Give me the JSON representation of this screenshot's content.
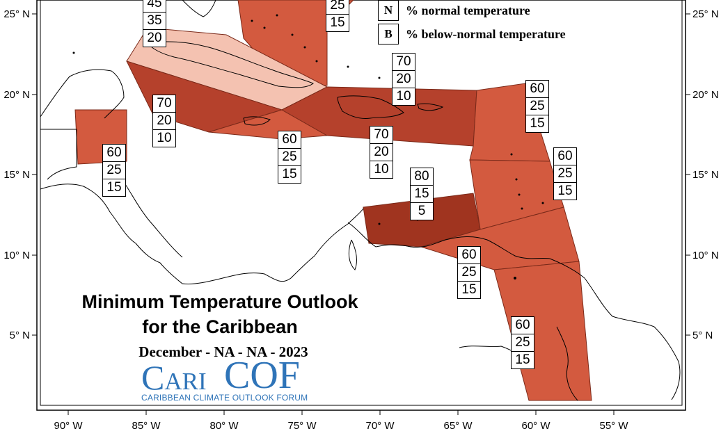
{
  "title": {
    "line1": "Minimum Temperature Outlook",
    "line2": "for the Caribbean"
  },
  "period": "December - NA - NA - 2023",
  "logo": {
    "name_prefix": "Cari",
    "name_suffix": "COF",
    "tagline": "CARIBBEAN CLIMATE OUTLOOK FORUM"
  },
  "legend": [
    {
      "key": "N",
      "text": "% normal temperature"
    },
    {
      "key": "B",
      "text": "% below-normal temperature"
    }
  ],
  "axes": {
    "longitude_ticks": [
      "90° W",
      "85° W",
      "80° W",
      "75° W",
      "70° W",
      "65° W",
      "60° W",
      "55° W"
    ],
    "latitude_ticks": [
      "25° N",
      "20° N",
      "15° N",
      "10° N",
      "5° N"
    ]
  },
  "colors": {
    "above_light": "#f4c2b1",
    "above_medium": "#d35a3f",
    "above_strong": "#b5412c",
    "above_darkest": "#a0341f"
  },
  "probability_boxes": [
    {
      "id": "bahamas-west",
      "values": [
        "45",
        "35",
        "20"
      ]
    },
    {
      "id": "bahamas-east",
      "values": [
        "25",
        "15"
      ]
    },
    {
      "id": "cayman-jamaica-west",
      "values": [
        "70",
        "20",
        "10"
      ]
    },
    {
      "id": "belize",
      "values": [
        "60",
        "25",
        "15"
      ]
    },
    {
      "id": "jamaica",
      "values": [
        "60",
        "25",
        "15"
      ]
    },
    {
      "id": "hispaniola",
      "values": [
        "70",
        "20",
        "10"
      ]
    },
    {
      "id": "turks-caicos",
      "values": [
        "70",
        "20",
        "10"
      ]
    },
    {
      "id": "northern-leewards",
      "values": [
        "60",
        "25",
        "15"
      ]
    },
    {
      "id": "windwards",
      "values": [
        "60",
        "25",
        "15"
      ]
    },
    {
      "id": "abc-islands",
      "values": [
        "80",
        "15",
        "5"
      ]
    },
    {
      "id": "trinidad",
      "values": [
        "60",
        "25",
        "15"
      ]
    },
    {
      "id": "guianas",
      "values": [
        "60",
        "25",
        "15"
      ]
    }
  ]
}
